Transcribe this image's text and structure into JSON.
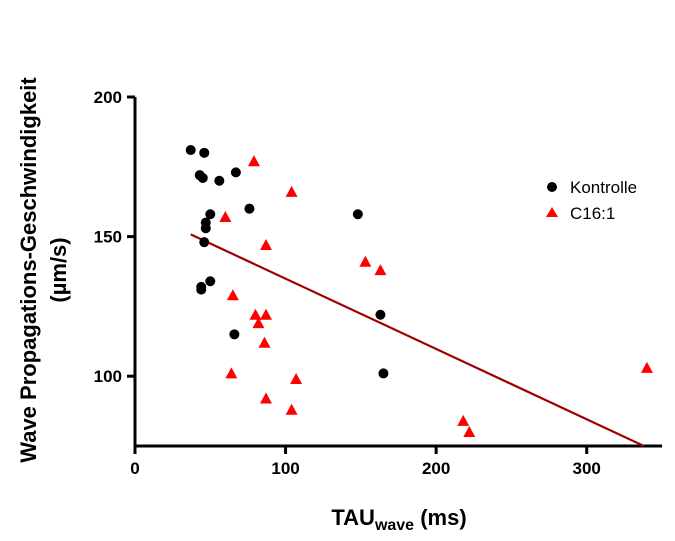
{
  "chart_data": {
    "type": "scatter",
    "ylabel": "Wave Propagations-Geschwindigkeit",
    "ylabel_unit": "(µm/s)",
    "xlabel_main": "TAU",
    "xlabel_sub": "wave",
    "xlabel_unit": " (ms)",
    "xlim": [
      0,
      350
    ],
    "ylim": [
      75,
      200
    ],
    "x_ticks": [
      0,
      100,
      200,
      300
    ],
    "y_ticks": [
      100,
      150,
      200
    ],
    "legend_position": "right",
    "series": [
      {
        "name": "Kontrolle",
        "marker": "circle",
        "color": "#000000",
        "points": [
          [
            37,
            181
          ],
          [
            43,
            172
          ],
          [
            46,
            180
          ],
          [
            45,
            171
          ],
          [
            56,
            170
          ],
          [
            67,
            173
          ],
          [
            76,
            160
          ],
          [
            50,
            158
          ],
          [
            47,
            155
          ],
          [
            47,
            153
          ],
          [
            46,
            148
          ],
          [
            44,
            132
          ],
          [
            44,
            131
          ],
          [
            50,
            134
          ],
          [
            66,
            115
          ],
          [
            148,
            158
          ],
          [
            163,
            122
          ],
          [
            165,
            101
          ]
        ]
      },
      {
        "name": "C16:1",
        "marker": "triangle",
        "color": "#ff0000",
        "points": [
          [
            79,
            177
          ],
          [
            104,
            166
          ],
          [
            60,
            157
          ],
          [
            87,
            147
          ],
          [
            153,
            141
          ],
          [
            163,
            138
          ],
          [
            65,
            129
          ],
          [
            80,
            122
          ],
          [
            87,
            122
          ],
          [
            82,
            119
          ],
          [
            86,
            112
          ],
          [
            64,
            101
          ],
          [
            107,
            99
          ],
          [
            87,
            92
          ],
          [
            104,
            88
          ],
          [
            218,
            84
          ],
          [
            222,
            80
          ],
          [
            340,
            103
          ]
        ]
      }
    ],
    "trendline": {
      "color": "#a00000",
      "x": [
        37,
        338
      ],
      "y": [
        150.8,
        75
      ]
    }
  }
}
